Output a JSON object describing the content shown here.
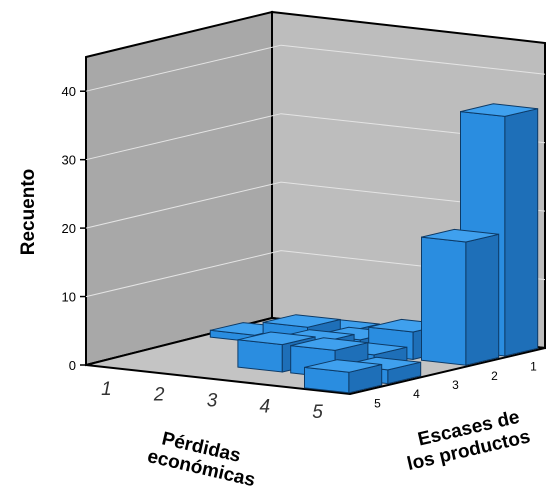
{
  "chart_data": {
    "type": "bar3d",
    "ylabel": "Recuento",
    "xlabel_lines": [
      "Pérdidas",
      "económicas"
    ],
    "zlabel_lines": [
      "Escases de",
      "los productos"
    ],
    "x_categories": [
      "1",
      "2",
      "3",
      "4",
      "5"
    ],
    "z_categories": [
      "5",
      "4",
      "3",
      "2",
      "1"
    ],
    "y_ticks": [
      "0",
      "10",
      "20",
      "30",
      "40"
    ],
    "ylim": [
      0,
      45
    ],
    "grid": true,
    "bar_color": "#2b8fe0",
    "bars": [
      {
        "x": "1",
        "z": "2",
        "value": 1
      },
      {
        "x": "2",
        "z": "1",
        "value": 1
      },
      {
        "x": "2",
        "z": "2",
        "value": 3
      },
      {
        "x": "3",
        "z": "2",
        "value": 2
      },
      {
        "x": "3",
        "z": "3",
        "value": 3
      },
      {
        "x": "3",
        "z": "4",
        "value": 4
      },
      {
        "x": "4",
        "z": "2",
        "value": 4
      },
      {
        "x": "4",
        "z": "3",
        "value": 2
      },
      {
        "x": "4",
        "z": "4",
        "value": 4
      },
      {
        "x": "5",
        "z": "1",
        "value": 35
      },
      {
        "x": "5",
        "z": "2",
        "value": 18
      },
      {
        "x": "5",
        "z": "4",
        "value": 2
      },
      {
        "x": "5",
        "z": "5",
        "value": 3
      }
    ]
  }
}
